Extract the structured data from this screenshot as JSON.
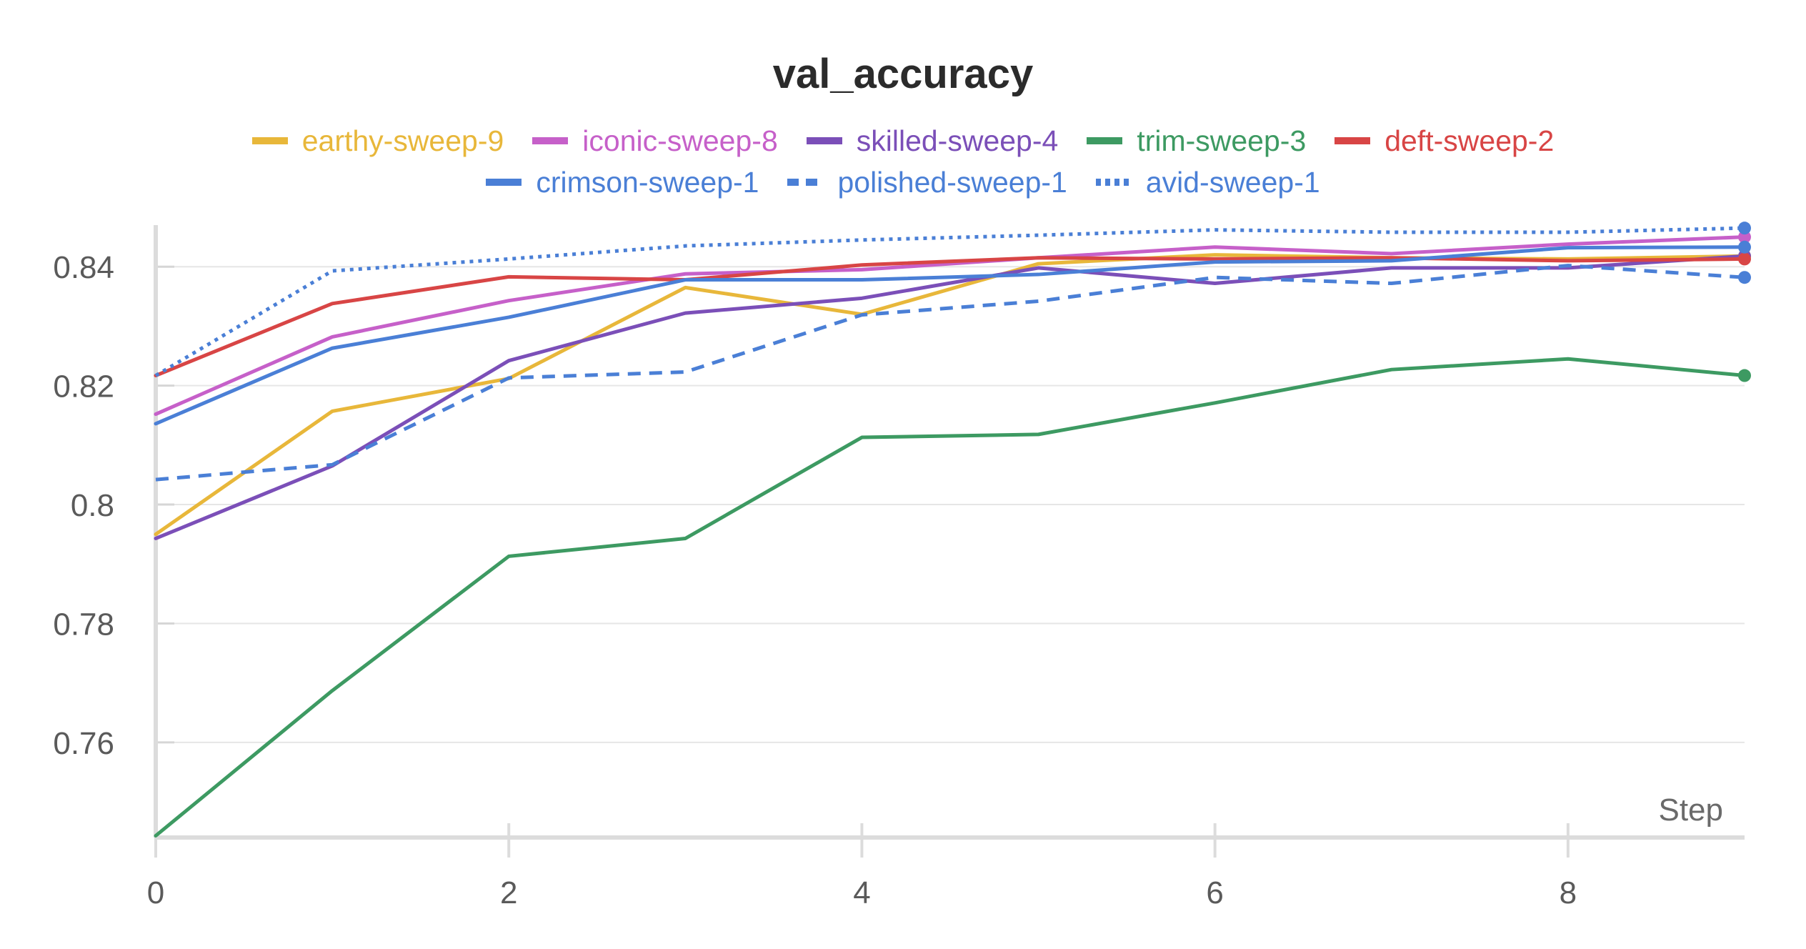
{
  "chart_data": {
    "type": "line",
    "title": "val_accuracy",
    "xlabel": "Step",
    "ylabel": "",
    "xlim": [
      0,
      9
    ],
    "ylim": [
      0.744,
      0.847
    ],
    "x_ticks": [
      0,
      2,
      4,
      6,
      8
    ],
    "x_tick_labels": [
      "0",
      "2",
      "4",
      "6",
      "8"
    ],
    "y_ticks": [
      0.76,
      0.78,
      0.8,
      0.82,
      0.84
    ],
    "y_tick_labels": [
      "0.76",
      "0.78",
      "0.8",
      "0.82",
      "0.84"
    ],
    "grid": true,
    "legend_position": "top",
    "x": [
      0,
      1,
      2,
      3,
      4,
      5,
      6,
      7,
      8,
      9
    ],
    "series": [
      {
        "name": "earthy-sweep-9",
        "color": "#e8b73a",
        "dash": "solid",
        "values": [
          0.795,
          0.8157,
          0.8212,
          0.8365,
          0.832,
          0.8405,
          0.842,
          0.8415,
          0.8413,
          0.8418
        ]
      },
      {
        "name": "iconic-sweep-8",
        "color": "#c660c9",
        "dash": "solid",
        "values": [
          0.8152,
          0.8282,
          0.8343,
          0.8388,
          0.8395,
          0.8415,
          0.8433,
          0.8422,
          0.8438,
          0.845
        ]
      },
      {
        "name": "skilled-sweep-4",
        "color": "#7b4fb8",
        "dash": "solid",
        "values": [
          0.7943,
          0.8065,
          0.8242,
          0.8322,
          0.8347,
          0.8398,
          0.8372,
          0.8398,
          0.8398,
          0.8418
        ]
      },
      {
        "name": "trim-sweep-3",
        "color": "#3d9a62",
        "dash": "solid",
        "values": [
          0.7443,
          0.7687,
          0.7913,
          0.7943,
          0.8113,
          0.8118,
          0.8171,
          0.8227,
          0.8245,
          0.8217
        ]
      },
      {
        "name": "deft-sweep-2",
        "color": "#d84545",
        "dash": "solid",
        "values": [
          0.8217,
          0.8338,
          0.8383,
          0.8378,
          0.8403,
          0.8415,
          0.8413,
          0.8415,
          0.841,
          0.8413
        ]
      },
      {
        "name": "crimson-sweep-1",
        "color": "#4a7fd6",
        "dash": "solid",
        "values": [
          0.8136,
          0.8263,
          0.8315,
          0.8378,
          0.8378,
          0.8387,
          0.8408,
          0.841,
          0.8432,
          0.8433
        ]
      },
      {
        "name": "polished-sweep-1",
        "color": "#4a7fd6",
        "dash": "dashed",
        "values": [
          0.8042,
          0.8067,
          0.8213,
          0.8223,
          0.8319,
          0.8342,
          0.8382,
          0.8372,
          0.8402,
          0.8382
        ]
      },
      {
        "name": "avid-sweep-1",
        "color": "#4a7fd6",
        "dash": "dotted",
        "values": [
          0.8217,
          0.8393,
          0.8413,
          0.8435,
          0.8445,
          0.8453,
          0.8462,
          0.8458,
          0.8458,
          0.8465
        ]
      }
    ]
  }
}
